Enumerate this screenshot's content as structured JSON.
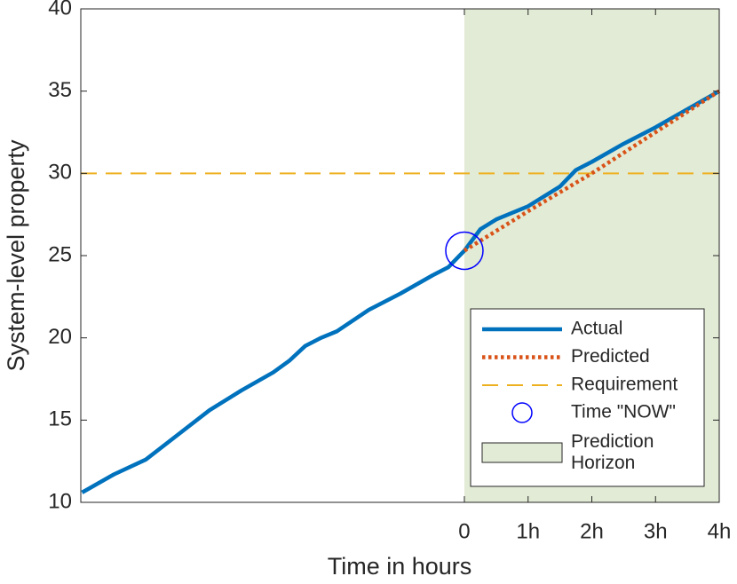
{
  "chart_data": {
    "type": "line",
    "xlabel": "Time in hours",
    "ylabel": "System-level property",
    "xlim": [
      -6.02,
      4
    ],
    "ylim": [
      10,
      40
    ],
    "xticks": [
      0,
      {
        "value": 1,
        "label": "1h"
      },
      {
        "value": 2,
        "label": "2h"
      },
      {
        "value": 3,
        "label": "3h"
      },
      {
        "value": 4,
        "label": "4h"
      }
    ],
    "yticks": [
      10,
      15,
      20,
      25,
      30,
      35,
      40
    ],
    "legend": "lower right",
    "series": [
      {
        "name": "Actual",
        "color": "#0072bd",
        "style": "solid",
        "x": [
          -6.0,
          -5.5,
          -5.0,
          -4.5,
          -4.0,
          -3.5,
          -3.0,
          -2.75,
          -2.5,
          -2.25,
          -2.0,
          -1.5,
          -1.0,
          -0.5,
          -0.25,
          0,
          0.25,
          0.5,
          1.0,
          1.5,
          1.75,
          2.0,
          2.5,
          3.0,
          3.5,
          4.0
        ],
        "values": [
          10.6,
          11.7,
          12.6,
          14.1,
          15.6,
          16.8,
          17.9,
          18.6,
          19.5,
          20.0,
          20.4,
          21.7,
          22.7,
          23.8,
          24.3,
          25.3,
          26.6,
          27.2,
          28.0,
          29.2,
          30.2,
          30.7,
          31.8,
          32.8,
          33.9,
          35.0
        ]
      },
      {
        "name": "Predicted",
        "color": "#d95319",
        "style": "dotted",
        "x": [
          0,
          1,
          2,
          3,
          4
        ],
        "values": [
          25.3,
          27.7,
          30.0,
          32.5,
          35.0
        ]
      }
    ],
    "requirement": {
      "name": "Requirement",
      "color": "#edb120",
      "value": 30
    },
    "now": {
      "name": "Time \"NOW\"",
      "color": "#0000ff",
      "x": 0,
      "value": 25.3
    },
    "horizon": {
      "name": "Prediction Horizon",
      "color": "#e2ebd5",
      "x": [
        0,
        4
      ]
    }
  }
}
